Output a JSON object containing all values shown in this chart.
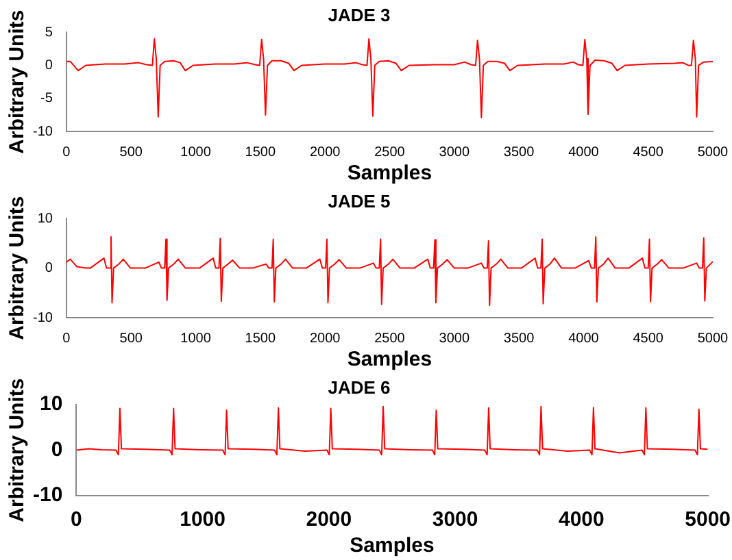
{
  "chart_data": [
    {
      "type": "line",
      "title": "JADE 3",
      "xlabel": "Samples",
      "ylabel": "Arbitrary Units",
      "grid": false,
      "legend": false,
      "marker": "none",
      "xlim": [
        0,
        5000
      ],
      "xticks": [
        0,
        500,
        1000,
        1500,
        2000,
        2500,
        3000,
        3500,
        4000,
        4500,
        5000
      ],
      "ylim": [
        -10,
        5
      ],
      "yticks": [
        -10,
        -5,
        0,
        5
      ],
      "series": [
        {
          "color": "#ff0000",
          "x": [
            0,
            30,
            90,
            150,
            300,
            450,
            560,
            620,
            665,
            680,
            695,
            710,
            725,
            760,
            830,
            880,
            920,
            980,
            1150,
            1300,
            1400,
            1460,
            1495,
            1510,
            1525,
            1540,
            1555,
            1590,
            1660,
            1720,
            1760,
            1820,
            2000,
            2150,
            2240,
            2290,
            2325,
            2340,
            2355,
            2370,
            2385,
            2420,
            2490,
            2550,
            2590,
            2650,
            2850,
            3000,
            3080,
            3130,
            3165,
            3180,
            3195,
            3210,
            3225,
            3260,
            3330,
            3390,
            3430,
            3490,
            3700,
            3850,
            3920,
            3960,
            3995,
            4010,
            4025,
            4035,
            4050,
            4090,
            4160,
            4220,
            4260,
            4320,
            4500,
            4700,
            4770,
            4810,
            4835,
            4850,
            4865,
            4875,
            4890,
            4930,
            5000
          ],
          "values": [
            0.6,
            0.6,
            -0.8,
            0,
            0.2,
            0.2,
            0.4,
            0.1,
            0,
            4,
            1,
            -7.8,
            0,
            0.6,
            0.7,
            0.4,
            -0.8,
            0,
            0.2,
            0.2,
            0.4,
            0.1,
            0,
            3.9,
            1,
            -7.5,
            0,
            0.7,
            0.7,
            0.3,
            -0.8,
            0,
            0.2,
            0.2,
            0.4,
            0.1,
            0,
            4,
            1,
            -7.7,
            0,
            0.6,
            0.7,
            0.3,
            -0.8,
            0,
            0.1,
            0.1,
            0.5,
            0.1,
            0,
            3.8,
            1,
            -7.9,
            0,
            0.6,
            0.6,
            0.3,
            -0.8,
            0,
            0.2,
            0.2,
            0.5,
            0.1,
            0,
            3.9,
            1,
            -7.4,
            0,
            0.8,
            0.7,
            0.3,
            -0.8,
            0,
            0.2,
            0.3,
            0.4,
            0,
            0,
            3.8,
            1,
            -7.8,
            0,
            0.5,
            0.6
          ]
        }
      ]
    },
    {
      "type": "line",
      "title": "JADE 5",
      "xlabel": "Samples",
      "ylabel": "Arbitrary Units",
      "grid": false,
      "legend": false,
      "marker": "none",
      "xlim": [
        0,
        5000
      ],
      "xticks": [
        0,
        500,
        1000,
        1500,
        2000,
        2500,
        3000,
        3500,
        4000,
        4500,
        5000
      ],
      "ylim": [
        -10,
        10
      ],
      "yticks": [
        -10,
        0,
        10
      ],
      "series": [
        {
          "color": "#ff0000",
          "x": [
            0,
            30,
            80,
            150,
            185,
            290,
            310,
            335,
            345,
            353,
            365,
            405,
            440,
            495,
            610,
            715,
            735,
            760,
            770,
            778,
            790,
            830,
            865,
            920,
            1030,
            1135,
            1155,
            1180,
            1190,
            1198,
            1210,
            1250,
            1285,
            1340,
            1440,
            1545,
            1565,
            1590,
            1600,
            1608,
            1620,
            1660,
            1695,
            1750,
            1855,
            1960,
            1980,
            2005,
            2015,
            2023,
            2035,
            2075,
            2110,
            2165,
            2270,
            2375,
            2395,
            2420,
            2430,
            2438,
            2450,
            2490,
            2525,
            2580,
            2690,
            2795,
            2815,
            2840,
            2850,
            2858,
            2870,
            2910,
            2945,
            3000,
            3105,
            3210,
            3230,
            3255,
            3265,
            3273,
            3285,
            3325,
            3360,
            3415,
            3520,
            3625,
            3645,
            3670,
            3680,
            3688,
            3700,
            3740,
            3775,
            3830,
            3935,
            4040,
            4060,
            4085,
            4095,
            4103,
            4115,
            4155,
            4190,
            4245,
            4350,
            4455,
            4475,
            4500,
            4510,
            4518,
            4530,
            4570,
            4605,
            4660,
            4770,
            4875,
            4895,
            4920,
            4930,
            4938,
            4950,
            5000
          ],
          "values": [
            1.2,
            1.8,
            0.3,
            0,
            0,
            2,
            0,
            0,
            6.3,
            -7,
            0,
            0.8,
            1.8,
            0,
            0,
            1.2,
            0,
            0,
            5.8,
            -6.5,
            0,
            0.8,
            1.8,
            0,
            0,
            2,
            0,
            0,
            6,
            -6.7,
            0,
            0.8,
            1.6,
            0,
            0,
            0.8,
            0,
            0,
            5.8,
            -6.8,
            0,
            0.8,
            1.8,
            0,
            0,
            1.8,
            0,
            0,
            5.8,
            -7,
            0,
            0.8,
            1.7,
            0,
            0,
            1,
            0,
            0,
            5.8,
            -7.3,
            0,
            0.8,
            1.8,
            0,
            0,
            1.8,
            0,
            0,
            5.7,
            -7,
            0,
            0.8,
            1.7,
            0,
            0,
            1,
            0,
            0,
            5.5,
            -7.5,
            0,
            0.8,
            1.8,
            0,
            0,
            2,
            0,
            0,
            5.8,
            -7.2,
            0,
            0.8,
            2,
            0,
            0,
            1.5,
            0,
            0,
            6.3,
            -6.8,
            0,
            0.8,
            2,
            0,
            0,
            2,
            0,
            0,
            5.8,
            -6.8,
            0,
            0.8,
            1.7,
            0,
            0,
            1,
            0,
            0,
            6.1,
            -6.6,
            0,
            1.3
          ]
        }
      ]
    },
    {
      "type": "line",
      "title": "JADE 6",
      "xlabel": "Samples",
      "ylabel": "Arbitrary Units",
      "grid": false,
      "legend": false,
      "marker": "none",
      "xlim": [
        0,
        5000
      ],
      "xticks": [
        0,
        1000,
        2000,
        3000,
        4000,
        5000
      ],
      "ylim": [
        -10,
        10
      ],
      "yticks": [
        -10,
        0,
        10
      ],
      "series": [
        {
          "color": "#ff0000",
          "x": [
            0,
            100,
            200,
            315,
            333,
            345,
            357,
            545,
            740,
            758,
            770,
            782,
            980,
            1160,
            1178,
            1190,
            1202,
            1400,
            1570,
            1588,
            1600,
            1612,
            1810,
            1985,
            2003,
            2015,
            2027,
            2220,
            2400,
            2418,
            2430,
            2442,
            2640,
            2820,
            2838,
            2850,
            2862,
            3060,
            3235,
            3253,
            3265,
            3277,
            3470,
            3650,
            3668,
            3680,
            3692,
            3890,
            4065,
            4083,
            4095,
            4107,
            4300,
            4480,
            4498,
            4510,
            4522,
            4720,
            4900,
            4918,
            4930,
            4942,
            5000
          ],
          "values": [
            0,
            0.3,
            0.1,
            0,
            -1,
            9.2,
            0.3,
            0.2,
            0,
            -1,
            9.2,
            0.3,
            0.1,
            0,
            -1,
            8.8,
            0.3,
            0.2,
            0,
            -1,
            9.3,
            0.3,
            -0.2,
            0,
            -1,
            9.2,
            0.3,
            0.2,
            0,
            -1,
            9.6,
            0.3,
            0.1,
            0,
            -1,
            8.8,
            0.3,
            0.2,
            0,
            -1,
            9.3,
            0.3,
            0.1,
            0,
            -1,
            9.6,
            0.3,
            -0.2,
            0,
            -1,
            9.4,
            0.3,
            -0.6,
            0,
            -1,
            9.3,
            0.3,
            0.2,
            0,
            -1,
            9,
            0.3,
            0.2
          ]
        }
      ]
    }
  ]
}
